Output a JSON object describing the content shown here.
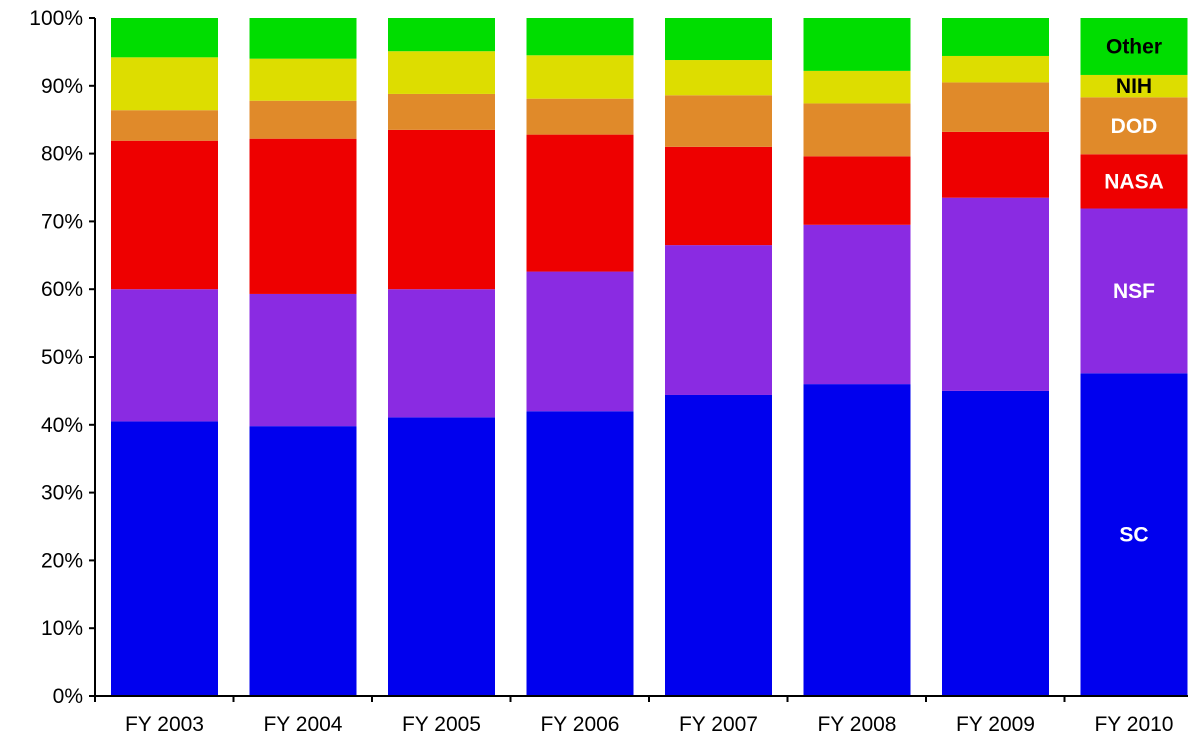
{
  "chart_data": {
    "type": "bar",
    "stacked": true,
    "percent": true,
    "categories": [
      "FY 2003",
      "FY 2004",
      "FY 2005",
      "FY 2006",
      "FY 2007",
      "FY 2008",
      "FY 2009",
      "FY 2010"
    ],
    "series": [
      {
        "name": "SC",
        "color": "#0000ee",
        "label_color": "#ffffff",
        "values": [
          40.5,
          39.8,
          41.1,
          42.0,
          44.4,
          46.0,
          45.0,
          47.6
        ]
      },
      {
        "name": "NSF",
        "color": "#8a2be2",
        "label_color": "#ffffff",
        "values": [
          19.5,
          19.5,
          18.9,
          20.6,
          22.1,
          23.5,
          28.5,
          24.3
        ]
      },
      {
        "name": "NASA",
        "color": "#ee0000",
        "label_color": "#ffffff",
        "values": [
          21.9,
          22.9,
          23.5,
          20.2,
          14.5,
          10.1,
          9.7,
          8.0
        ]
      },
      {
        "name": "DOD",
        "color": "#e08a2a",
        "label_color": "#ffffff",
        "values": [
          4.5,
          5.6,
          5.3,
          5.3,
          7.6,
          7.8,
          7.3,
          8.4
        ]
      },
      {
        "name": "NIH",
        "color": "#dddd00",
        "label_color": "#000000",
        "values": [
          7.8,
          6.2,
          6.3,
          6.4,
          5.2,
          4.8,
          3.9,
          3.3
        ]
      },
      {
        "name": "Other",
        "color": "#00dd00",
        "label_color": "#000000",
        "values": [
          5.8,
          6.0,
          4.9,
          5.5,
          6.2,
          7.8,
          5.6,
          8.4
        ]
      }
    ],
    "segment_labels_on": "FY 2010",
    "ylim": [
      0,
      100
    ],
    "yticks": [
      0,
      10,
      20,
      30,
      40,
      50,
      60,
      70,
      80,
      90,
      100
    ],
    "ytick_format": "{v}%",
    "grid": false,
    "legend": "none",
    "title": "",
    "xlabel": "",
    "ylabel": ""
  }
}
